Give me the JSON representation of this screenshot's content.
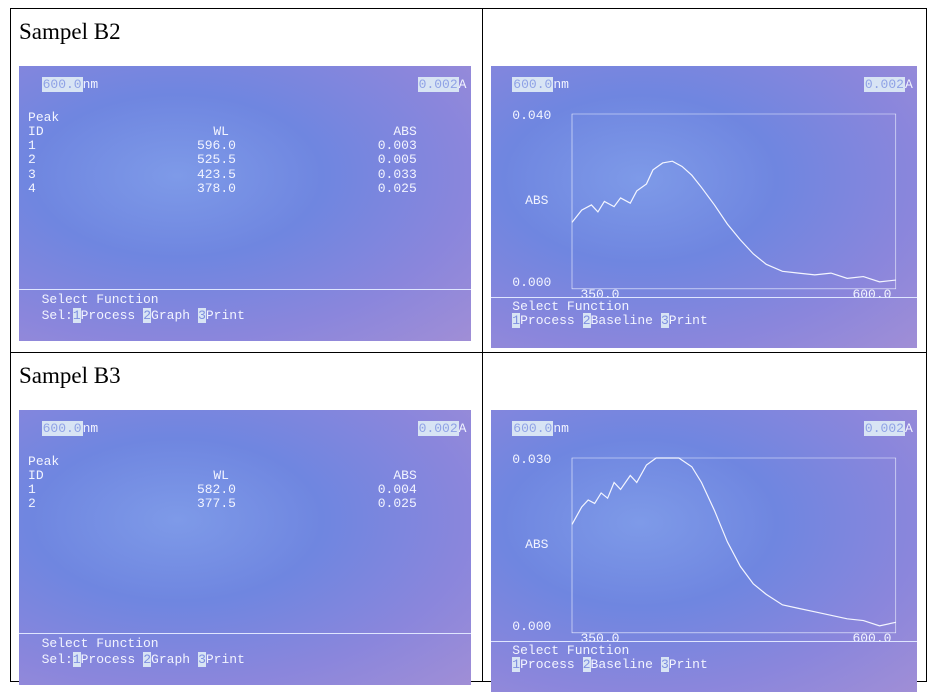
{
  "rows": [
    {
      "label": "Sampel B2",
      "table_screen": {
        "wavelength": "600.0",
        "wavelength_unit": "nm",
        "absorbance": "0.002",
        "absorbance_unit": "A",
        "peak_label": "Peak",
        "id_label": "ID",
        "wl_label": "WL",
        "abs_label": "ABS",
        "peaks": [
          [
            "1",
            "596.0",
            "0.003"
          ],
          [
            "2",
            "525.5",
            "0.005"
          ],
          [
            "3",
            "423.5",
            "0.033"
          ],
          [
            "4",
            "378.0",
            "0.025"
          ]
        ],
        "footer": "Select Function",
        "menu_prefix": "Sel:",
        "menu": [
          {
            "key": "1",
            "label": "Process"
          },
          {
            "key": "2",
            "label": "Graph"
          },
          {
            "key": "3",
            "label": "Print"
          }
        ]
      },
      "graph_screen": {
        "wavelength": "600.0",
        "wavelength_unit": "nm",
        "absorbance": "0.002",
        "absorbance_unit": "A",
        "y_max": "0.040",
        "y_label": "ABS",
        "y_min": "0.000",
        "x_min": "350.0",
        "x_max": "600.0",
        "footer": "Select Function",
        "menu": [
          {
            "key": "1",
            "label": "Process"
          },
          {
            "key": "2",
            "label": "Baseline"
          },
          {
            "key": "3",
            "label": "Print"
          }
        ]
      }
    },
    {
      "label": "Sampel B3",
      "table_screen": {
        "wavelength": "600.0",
        "wavelength_unit": "nm",
        "absorbance": "0.002",
        "absorbance_unit": "A",
        "peak_label": "Peak",
        "id_label": "ID",
        "wl_label": "WL",
        "abs_label": "ABS",
        "peaks": [
          [
            "1",
            "582.0",
            "0.004"
          ],
          [
            "2",
            "377.5",
            "0.025"
          ]
        ],
        "footer": "Select Function",
        "menu_prefix": "Sel:",
        "menu": [
          {
            "key": "1",
            "label": "Process"
          },
          {
            "key": "2",
            "label": "Graph"
          },
          {
            "key": "3",
            "label": "Print"
          }
        ]
      },
      "graph_screen": {
        "wavelength": "600.0",
        "wavelength_unit": "nm",
        "absorbance": "0.002",
        "absorbance_unit": "A",
        "y_max": "0.030",
        "y_label": "ABS",
        "y_min": "0.000",
        "x_min": "350.0",
        "x_max": "600.0",
        "footer": "Select Function",
        "menu": [
          {
            "key": "1",
            "label": "Process"
          },
          {
            "key": "2",
            "label": "Baseline"
          },
          {
            "key": "3",
            "label": "Print"
          }
        ]
      }
    }
  ]
}
